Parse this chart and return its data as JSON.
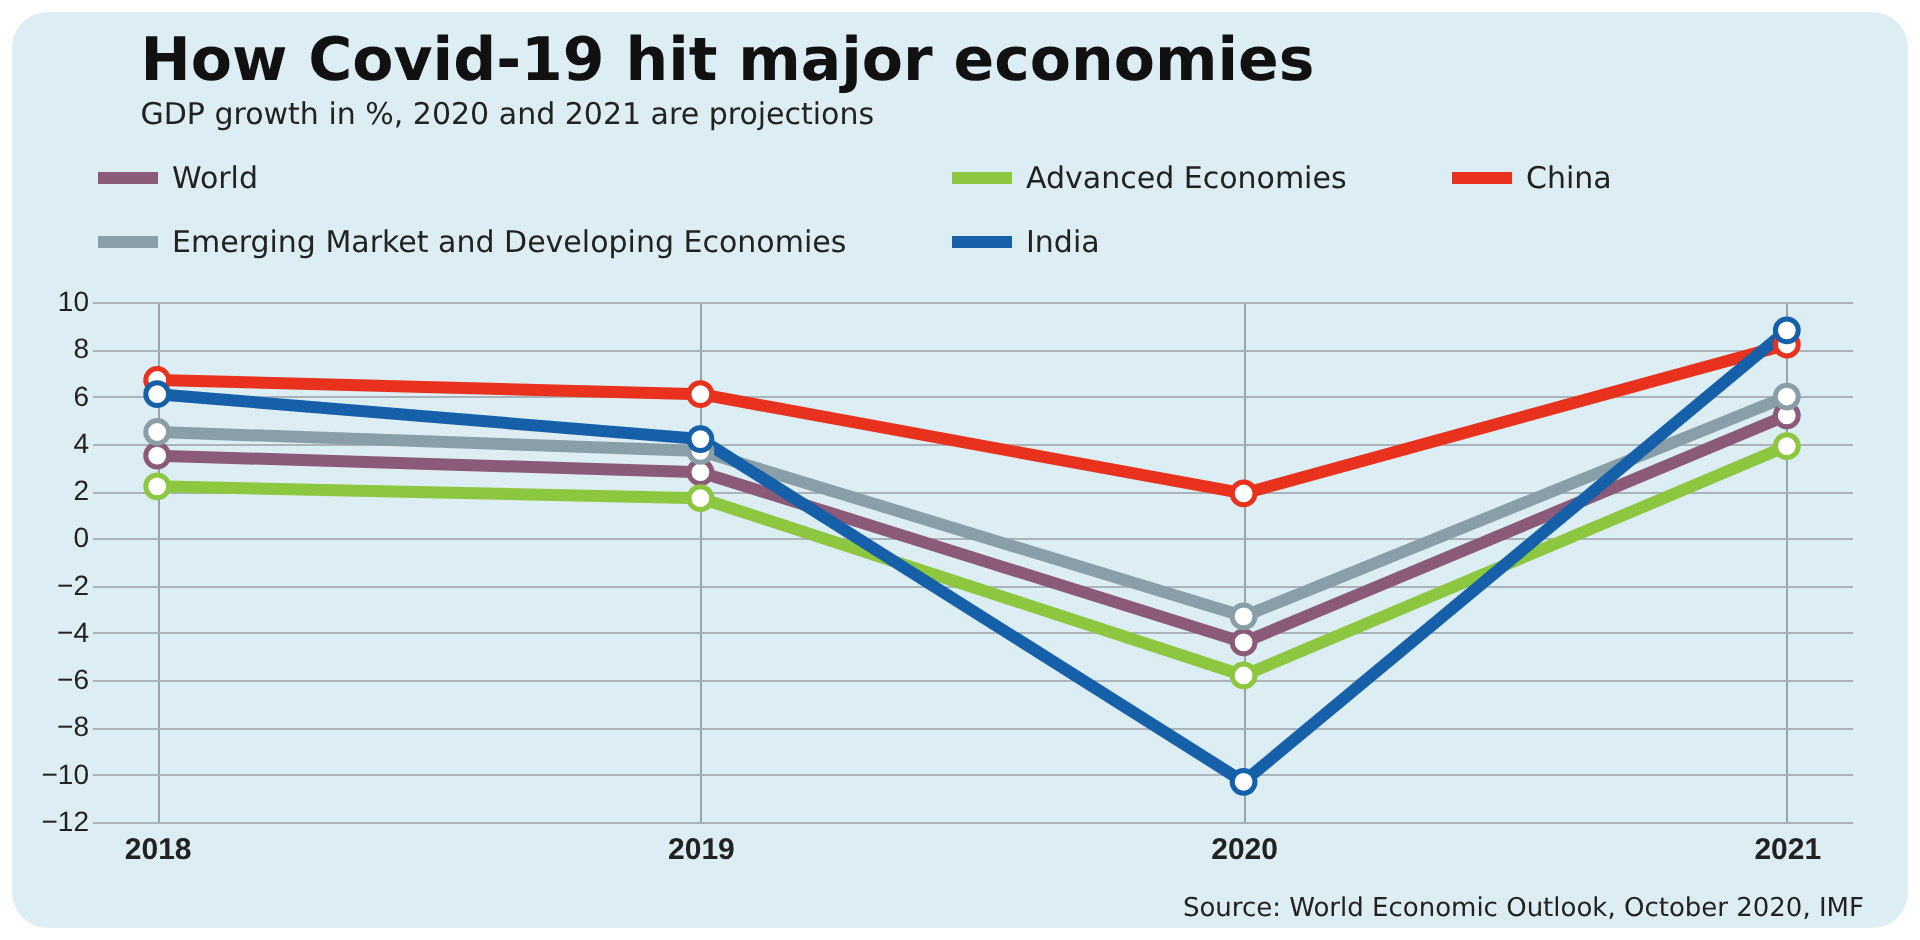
{
  "chart_data": {
    "type": "line",
    "title": "How Covid-19 hit major economies",
    "subtitle": "GDP growth in %, 2020 and 2021 are projections",
    "annotations": [
      "Source: World Economic Outlook, October 2020, IMF"
    ],
    "categories": [
      "2018",
      "2019",
      "2020",
      "2021"
    ],
    "series": [
      {
        "name": "World",
        "color": "#8b5a78",
        "values": [
          3.5,
          2.8,
          -4.4,
          5.2
        ]
      },
      {
        "name": "Advanced Economies",
        "color": "#8dc63f",
        "values": [
          2.2,
          1.7,
          -5.8,
          3.9
        ]
      },
      {
        "name": "China",
        "color": "#e8321e",
        "values": [
          6.7,
          6.1,
          1.9,
          8.2
        ]
      },
      {
        "name": "Emerging Market and Developing Economies",
        "color": "#8a9ea8",
        "values": [
          4.5,
          3.7,
          -3.3,
          6.0
        ]
      },
      {
        "name": "India",
        "color": "#1560a8",
        "values": [
          6.1,
          4.2,
          -10.3,
          8.8
        ]
      }
    ],
    "ylim": [
      -12,
      10
    ],
    "yticks": [
      -12,
      -10,
      -8,
      -6,
      -4,
      -2,
      0,
      2,
      4,
      6,
      8,
      10
    ],
    "grid": true,
    "legend": "top",
    "marker": "circle",
    "line_style": "solid"
  }
}
